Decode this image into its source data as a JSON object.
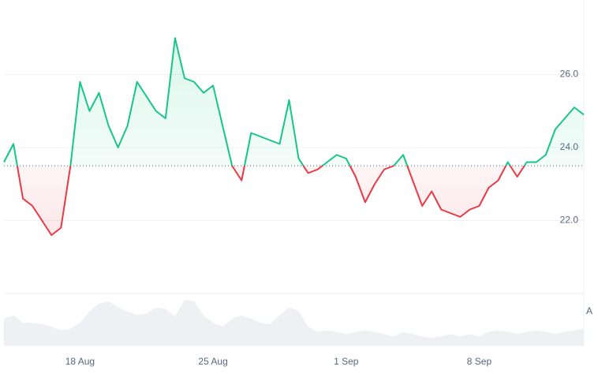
{
  "chart_data": {
    "type": "line",
    "categories": [
      null,
      null,
      null,
      null,
      null,
      null,
      null,
      null,
      "18 Aug",
      null,
      null,
      null,
      null,
      null,
      null,
      null,
      null,
      null,
      null,
      null,
      null,
      null,
      "25 Aug",
      null,
      null,
      null,
      null,
      null,
      null,
      null,
      null,
      null,
      null,
      null,
      null,
      null,
      "1 Sep",
      null,
      null,
      null,
      null,
      null,
      null,
      null,
      null,
      null,
      null,
      null,
      null,
      null,
      "8 Sep",
      null,
      null,
      null,
      null,
      null,
      null,
      null,
      null,
      null,
      null,
      null
    ],
    "values": [
      23.6,
      24.1,
      22.6,
      22.4,
      22.0,
      21.6,
      21.8,
      23.5,
      25.8,
      25.0,
      25.5,
      24.6,
      24.0,
      24.6,
      25.8,
      25.4,
      25.0,
      24.8,
      27.0,
      25.9,
      25.8,
      25.5,
      25.7,
      24.6,
      23.5,
      23.1,
      24.4,
      24.3,
      24.2,
      24.1,
      25.3,
      23.7,
      23.3,
      23.4,
      23.6,
      23.8,
      23.7,
      23.2,
      22.5,
      23.0,
      23.4,
      23.5,
      23.8,
      23.1,
      22.4,
      22.8,
      22.3,
      22.2,
      22.1,
      22.3,
      22.4,
      22.9,
      23.1,
      23.6,
      23.2,
      23.6,
      23.6,
      23.8,
      24.5,
      24.8,
      25.1,
      24.9
    ],
    "baseline": 23.5,
    "up_color": "#16c784",
    "down_color": "#ea3943",
    "volume_color": "#eef0f3",
    "volume": [
      35,
      40,
      30,
      30,
      28,
      25,
      20,
      22,
      30,
      45,
      55,
      58,
      50,
      45,
      40,
      42,
      50,
      48,
      38,
      60,
      58,
      40,
      30,
      25,
      35,
      40,
      35,
      30,
      28,
      40,
      50,
      45,
      25,
      18,
      20,
      18,
      15,
      18,
      20,
      18,
      15,
      12,
      18,
      15,
      12,
      10,
      12,
      15,
      12,
      15,
      12,
      18,
      20,
      18,
      15,
      18,
      20,
      18,
      15,
      18,
      20,
      22
    ],
    "annotation": "A",
    "ylim": [
      20,
      28
    ],
    "yticks": [
      {
        "value": 22,
        "label": "22.0"
      },
      {
        "value": 24,
        "label": "24.0"
      },
      {
        "value": 26,
        "label": "26.0"
      }
    ],
    "grid": true
  }
}
